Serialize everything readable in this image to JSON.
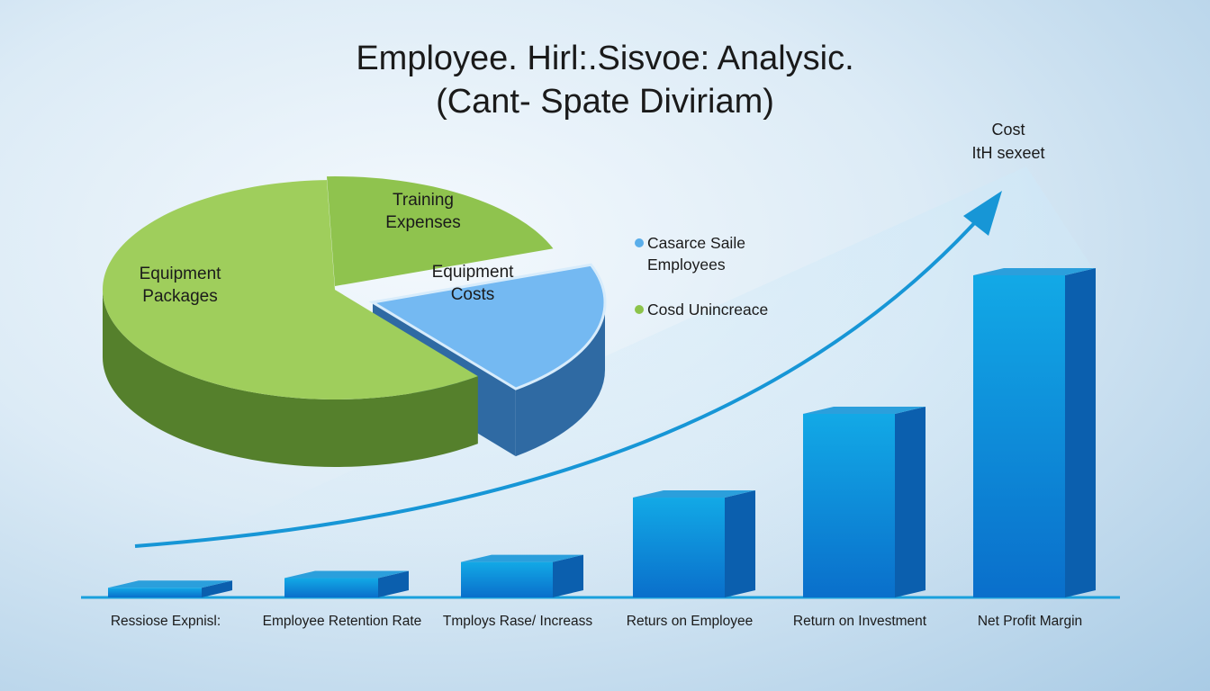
{
  "title": "Employee. Hirl:.Sisvoe: Analysic.",
  "subtitle": "(Cant- Spate Diviriam)",
  "chart_data": [
    {
      "type": "pie",
      "categories": [
        "Training Expenses",
        "Equipment Costs",
        "Equipment Packages"
      ],
      "values": [
        20,
        20,
        60
      ],
      "colors": [
        "#8fc34e",
        "#74b9f2",
        "#9fce5c"
      ],
      "side_colors": [
        "#5c8a2e",
        "#2f6aa3",
        "#55802c"
      ],
      "legend": [
        {
          "name": "Casarce Saile Employees",
          "color": "#5aaeea"
        },
        {
          "name": "Cosd Unincreace",
          "color": "#8cc34a"
        }
      ]
    },
    {
      "type": "bar",
      "categories": [
        "Ressiose Expnisl:",
        "Employee Retention Rate",
        "Tmploys Rase/ Increass",
        "Returs on Employee",
        "Return on Investment",
        "Net Profit Margin"
      ],
      "values": [
        3,
        6,
        11,
        31,
        57,
        100
      ],
      "color": "#1a8fdc",
      "annotation": [
        "Cost",
        "ItH sexeet"
      ]
    }
  ]
}
